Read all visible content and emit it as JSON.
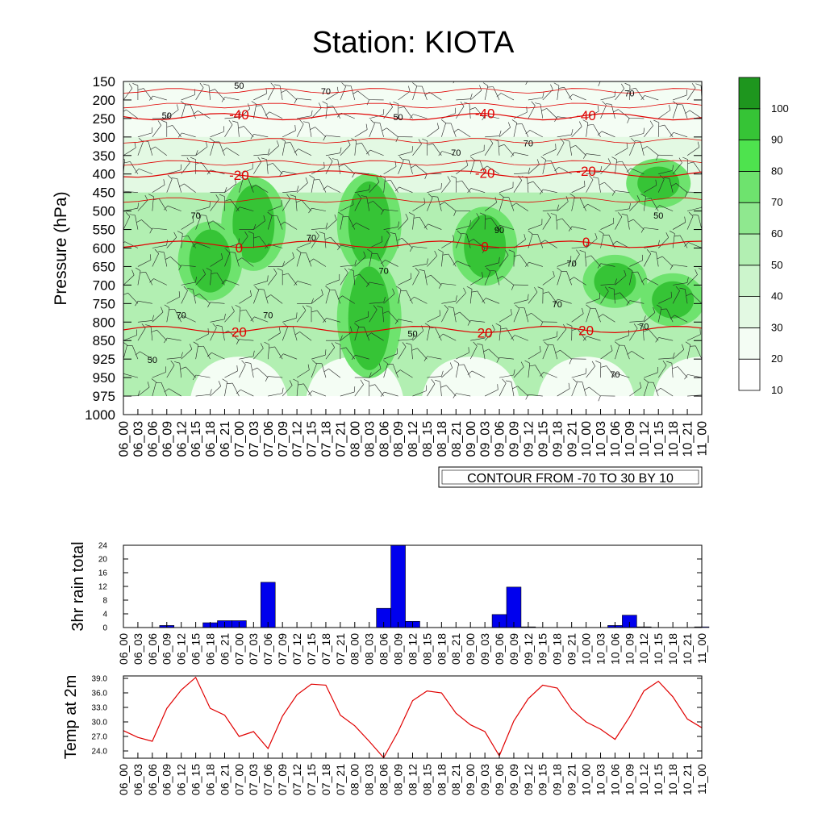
{
  "title": "Station: KIOTA",
  "contour_label": "CONTOUR FROM -70 TO 30 BY 10",
  "time_labels": [
    "06_00",
    "06_03",
    "06_06",
    "06_09",
    "06_12",
    "06_15",
    "06_18",
    "06_21",
    "07_00",
    "07_03",
    "07_06",
    "07_09",
    "07_12",
    "07_15",
    "07_18",
    "07_21",
    "08_00",
    "08_03",
    "08_06",
    "08_09",
    "08_12",
    "08_15",
    "08_18",
    "08_21",
    "09_00",
    "09_03",
    "09_06",
    "09_09",
    "09_12",
    "09_15",
    "09_18",
    "09_21",
    "10_00",
    "10_03",
    "10_06",
    "10_09",
    "10_12",
    "10_15",
    "10_18",
    "10_21",
    "11_00"
  ],
  "colors": {
    "temp_line": "#e00000",
    "rain_bar": "#0000ee",
    "humidity_levels": [
      "#ffffff",
      "#f4fdf4",
      "#e3f9e3",
      "#ccf5cc",
      "#b2efb2",
      "#8fe88f",
      "#6ee36e",
      "#4ee34e",
      "#36c436",
      "#1e961e"
    ]
  },
  "chart_data": [
    {
      "type": "heatmap",
      "title": "Station: KIOTA",
      "ylabel": "Pressure (hPa)",
      "xlabel": "",
      "y_levels": [
        150,
        200,
        250,
        300,
        350,
        400,
        450,
        500,
        550,
        600,
        650,
        700,
        750,
        800,
        850,
        925,
        950,
        975,
        1000
      ],
      "y_tick_labels": [
        "150",
        "200",
        "250",
        "300",
        "350",
        "400",
        "450",
        "500",
        "550",
        "600",
        "650",
        "700",
        "750",
        "800",
        "850",
        "925",
        "950",
        "975",
        "1000"
      ],
      "colorbar": {
        "levels": [
          10,
          20,
          30,
          40,
          50,
          60,
          70,
          80,
          90,
          100
        ],
        "labels": [
          "100",
          "90",
          "80",
          "70",
          "60",
          "50",
          "40",
          "30",
          "20",
          "10"
        ]
      },
      "humidity_contour_labels": [
        "50",
        "70",
        "90"
      ],
      "temperature_contours": [
        {
          "label": "-40",
          "level": 245
        },
        {
          "label": "-20",
          "level": 400
        },
        {
          "label": "0",
          "level": 590
        },
        {
          "label": "20",
          "level": 820
        }
      ],
      "humidity_cores": [
        {
          "time": "07_03",
          "level_top": 430,
          "level_bottom": 640,
          "value": 90
        },
        {
          "time": "06_18",
          "level_top": 550,
          "level_bottom": 720,
          "value": 90
        },
        {
          "time": "08_03",
          "level_top": 420,
          "level_bottom": 650,
          "value": 90
        },
        {
          "time": "08_03",
          "level_top": 650,
          "level_bottom": 940,
          "value": 90
        },
        {
          "time": "09_03",
          "level_top": 510,
          "level_bottom": 680,
          "value": 90
        },
        {
          "time": "10_06",
          "level_top": 640,
          "level_bottom": 740,
          "value": 90
        },
        {
          "time": "10_15",
          "level_top": 380,
          "level_bottom": 470,
          "value": 90
        },
        {
          "time": "10_18",
          "level_top": 690,
          "level_bottom": 790,
          "value": 90
        }
      ]
    },
    {
      "type": "bar",
      "ylabel": "3hr rain total",
      "ylim": [
        0,
        24
      ],
      "y_ticks": [
        "0",
        "4",
        "8",
        "12",
        "16",
        "20",
        "24"
      ],
      "values": [
        0,
        0,
        0,
        0.6,
        0,
        0,
        1.4,
        2.0,
        2.0,
        0,
        13.2,
        0,
        0,
        0,
        0,
        0,
        0,
        0,
        5.6,
        24.6,
        1.8,
        0,
        0,
        0,
        0,
        0,
        3.8,
        11.8,
        0.2,
        0,
        0,
        0,
        0,
        0,
        0.6,
        3.6,
        0.2,
        0,
        0,
        0,
        0.2
      ]
    },
    {
      "type": "line",
      "ylabel": "Temp at 2m",
      "ylim": [
        22.5,
        39.5
      ],
      "y_ticks": [
        "24.0",
        "27.0",
        "30.0",
        "33.0",
        "36.0",
        "39.0"
      ],
      "values": [
        28.2,
        26.8,
        26.0,
        32.8,
        36.6,
        39.2,
        32.8,
        31.4,
        27.0,
        28.0,
        24.5,
        31.2,
        35.6,
        37.8,
        37.6,
        31.4,
        29.2,
        26.0,
        22.6,
        28.0,
        34.4,
        36.4,
        36.0,
        31.8,
        29.4,
        28.0,
        23.0,
        30.2,
        34.8,
        37.6,
        37.0,
        32.6,
        30.0,
        28.5,
        26.4,
        31.0,
        36.4,
        38.4,
        35.2,
        30.6,
        28.8
      ]
    }
  ]
}
